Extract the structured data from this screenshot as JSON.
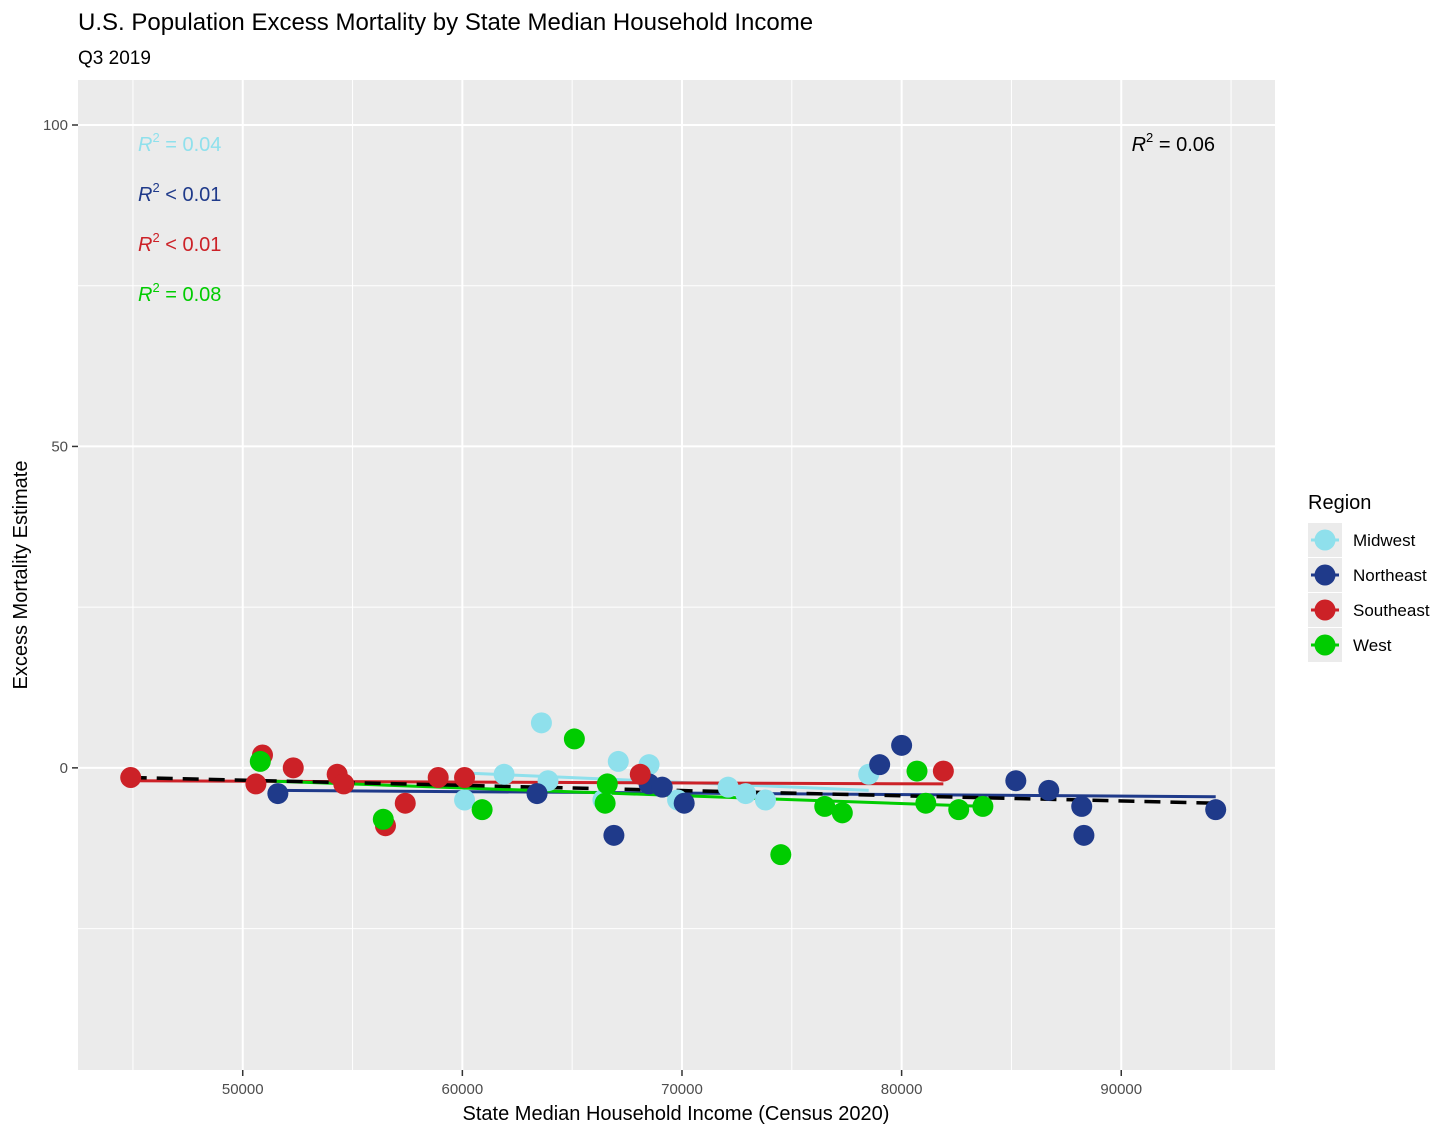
{
  "chart_data": {
    "type": "scatter",
    "title": "U.S. Population Excess Mortality by State Median Household Income",
    "subtitle": "Q3 2019",
    "xlabel": "State Median Household Income (Census 2020)",
    "ylabel": "Excess Mortality Estimate",
    "xlim": [
      42500,
      97000
    ],
    "ylim": [
      -47,
      107
    ],
    "x_ticks": [
      50000,
      60000,
      70000,
      80000,
      90000
    ],
    "y_ticks": [
      0,
      50,
      100
    ],
    "grid": true,
    "background": "#ebebeb",
    "legend": {
      "title": "Region",
      "placement": "right",
      "entries": [
        "Midwest",
        "Northeast",
        "Southeast",
        "West"
      ]
    },
    "series": [
      {
        "name": "Midwest",
        "color": "#8fe0ec",
        "r2_label": "= 0.04",
        "points": [
          [
            60100,
            -5
          ],
          [
            61900,
            -1
          ],
          [
            63600,
            7
          ],
          [
            63900,
            -2
          ],
          [
            66400,
            -5
          ],
          [
            67100,
            1
          ],
          [
            68500,
            0.5
          ],
          [
            69800,
            -5
          ],
          [
            72100,
            -3
          ],
          [
            72900,
            -4
          ],
          [
            73800,
            -5
          ],
          [
            78500,
            -1
          ]
        ],
        "fit": [
          [
            60100,
            -0.8
          ],
          [
            78500,
            -3.5
          ]
        ]
      },
      {
        "name": "Northeast",
        "color": "#1f3a8a",
        "r2_label": "< 0.01",
        "points": [
          [
            51600,
            -4
          ],
          [
            63400,
            -4
          ],
          [
            66900,
            -10.5
          ],
          [
            68500,
            -2.5
          ],
          [
            69100,
            -3
          ],
          [
            70100,
            -5.5
          ],
          [
            79000,
            0.5
          ],
          [
            80000,
            3.5
          ],
          [
            85200,
            -2
          ],
          [
            86700,
            -3.5
          ],
          [
            88200,
            -6
          ],
          [
            88300,
            -10.5
          ],
          [
            94300,
            -6.5
          ]
        ],
        "fit": [
          [
            51600,
            -3.5
          ],
          [
            94300,
            -4.5
          ]
        ]
      },
      {
        "name": "Southeast",
        "color": "#cc2127",
        "r2_label": "< 0.01",
        "points": [
          [
            44900,
            -1.5
          ],
          [
            50600,
            -2.5
          ],
          [
            50900,
            2
          ],
          [
            52300,
            0
          ],
          [
            54300,
            -1
          ],
          [
            54600,
            -2.5
          ],
          [
            56500,
            -9
          ],
          [
            57400,
            -5.5
          ],
          [
            58900,
            -1.5
          ],
          [
            60100,
            -1.5
          ],
          [
            68100,
            -1
          ],
          [
            81900,
            -0.5
          ]
        ],
        "fit": [
          [
            44900,
            -2
          ],
          [
            81900,
            -2.5
          ]
        ]
      },
      {
        "name": "West",
        "color": "#00cc00",
        "r2_label": "= 0.08",
        "points": [
          [
            50800,
            1
          ],
          [
            56400,
            -8
          ],
          [
            60900,
            -6.5
          ],
          [
            65100,
            4.5
          ],
          [
            66500,
            -5.5
          ],
          [
            66600,
            -2.5
          ],
          [
            74500,
            -13.5
          ],
          [
            76500,
            -6
          ],
          [
            77300,
            -7
          ],
          [
            80700,
            -0.5
          ],
          [
            81100,
            -5.5
          ],
          [
            82600,
            -6.5
          ],
          [
            83700,
            -6
          ]
        ],
        "fit": [
          [
            50800,
            -2
          ],
          [
            83700,
            -6
          ]
        ]
      }
    ],
    "overall": {
      "r2_label": "= 0.06",
      "color": "#000000",
      "fit": [
        [
          44900,
          -1.5
        ],
        [
          94300,
          -5.5
        ]
      ]
    }
  }
}
